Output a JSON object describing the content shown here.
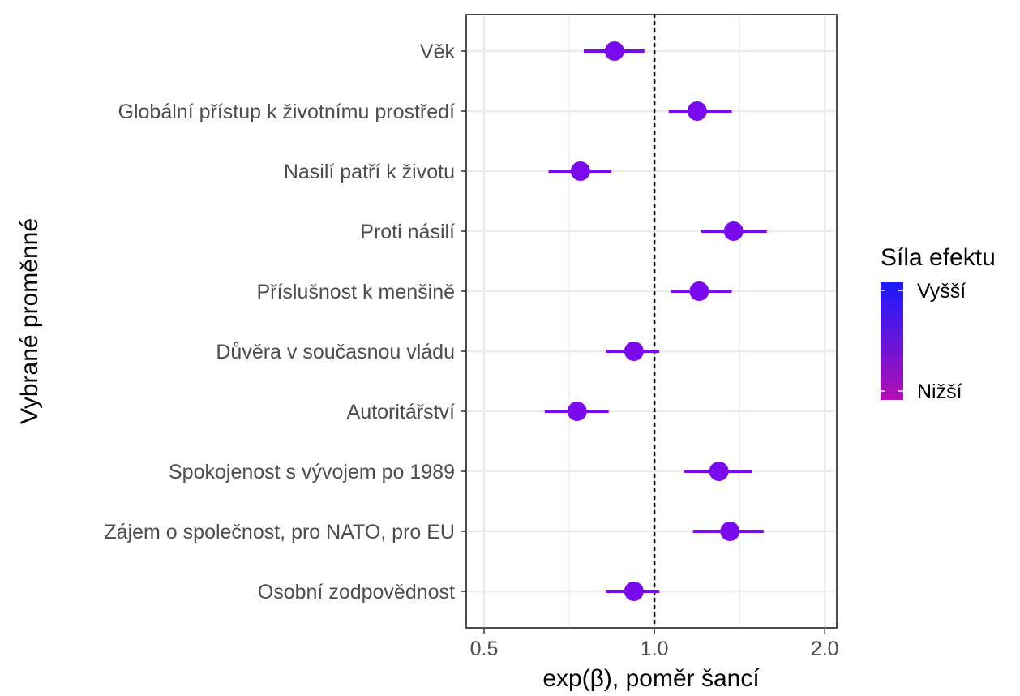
{
  "chart_data": {
    "type": "forest",
    "xlabel": "exp(β), poměr šancí",
    "ylabel": "Vybrané proměnné",
    "x_scale": "log",
    "xlim": [
      0.465,
      2.1
    ],
    "x_ticks": [
      0.5,
      1.0,
      2.0
    ],
    "x_tick_labels": [
      "0.5",
      "1.0",
      "2.0"
    ],
    "reference_line": 1.0,
    "grid": true,
    "legend": {
      "title": "Síla efektu",
      "position": "right",
      "high_label": "Vyšší",
      "low_label": "Nižší",
      "high_color": "#1a1aff",
      "low_color": "#b30fb3"
    },
    "point_color": "#7a0aee",
    "categories": [
      "Věk",
      "Globální přístup k životnímu prostředí",
      "Nasilí patří k životu",
      "Proti násilí",
      "Příslušnost k menšině",
      "Důvěra v současnou vládu",
      "Autoritářství",
      "Spokojenost s vývojem po 1989",
      "Zájem o společnost, pro NATO, pro EU",
      "Osobní zodpovědnost"
    ],
    "estimates": [
      0.85,
      1.19,
      0.74,
      1.38,
      1.2,
      0.92,
      0.73,
      1.3,
      1.36,
      0.92
    ],
    "ci_low": [
      0.75,
      1.06,
      0.65,
      1.21,
      1.07,
      0.82,
      0.64,
      1.13,
      1.17,
      0.82
    ],
    "ci_high": [
      0.96,
      1.37,
      0.84,
      1.58,
      1.37,
      1.02,
      0.83,
      1.49,
      1.56,
      1.02
    ]
  }
}
